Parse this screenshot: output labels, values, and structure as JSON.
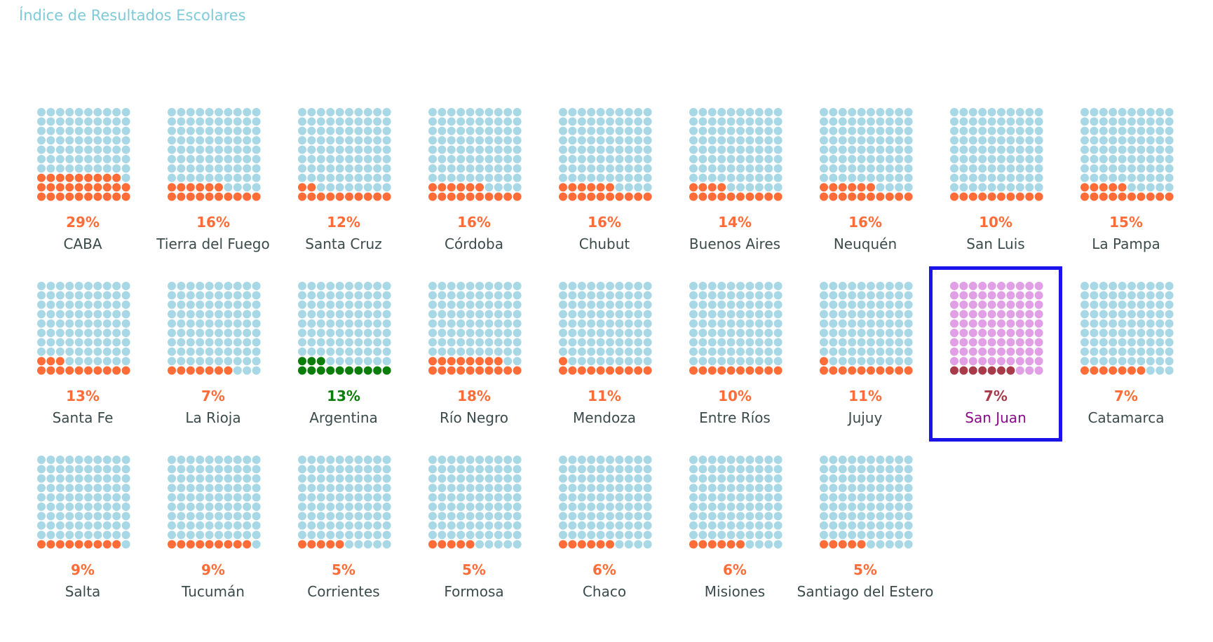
{
  "title": "Índice de Resultados Escolares",
  "colors": {
    "base_dot": "#a8d8e6",
    "highlight_dot": "#ff6c38",
    "pct_text": "#ff6c38",
    "name_text": "#3b4a4a",
    "national_dot": "#0a7d0a",
    "national_text": "#0a7d0a",
    "selected_base_dot": "#e1a0e5",
    "selected_highlight_dot": "#a83a4a",
    "selected_pct_text": "#a83a4a",
    "selected_name_text": "#8a0a8a",
    "selected_border": "#1a14ea",
    "title": "#7fcad8"
  },
  "chart_data": {
    "type": "waffle",
    "title": "Índice de Resultados Escolares",
    "unit": "%",
    "grid": [
      10,
      10
    ],
    "selected": "San Juan",
    "national": "Argentina",
    "items": [
      {
        "name": "CABA",
        "value": 29,
        "label": "29%"
      },
      {
        "name": "Tierra del Fuego",
        "value": 16,
        "label": "16%"
      },
      {
        "name": "Santa Cruz",
        "value": 12,
        "label": "12%"
      },
      {
        "name": "Córdoba",
        "value": 16,
        "label": "16%"
      },
      {
        "name": "Chubut",
        "value": 16,
        "label": "16%"
      },
      {
        "name": "Buenos Aires",
        "value": 14,
        "label": "14%"
      },
      {
        "name": "Neuquén",
        "value": 16,
        "label": "16%"
      },
      {
        "name": "San Luis",
        "value": 10,
        "label": "10%"
      },
      {
        "name": "La Pampa",
        "value": 15,
        "label": "15%"
      },
      {
        "name": "Santa Fe",
        "value": 13,
        "label": "13%"
      },
      {
        "name": "La Rioja",
        "value": 7,
        "label": "7%"
      },
      {
        "name": "Argentina",
        "value": 13,
        "label": "13%"
      },
      {
        "name": "Río Negro",
        "value": 18,
        "label": "18%"
      },
      {
        "name": "Mendoza",
        "value": 11,
        "label": "11%"
      },
      {
        "name": "Entre Ríos",
        "value": 10,
        "label": "10%"
      },
      {
        "name": "Jujuy",
        "value": 11,
        "label": "11%"
      },
      {
        "name": "San Juan",
        "value": 7,
        "label": "7%"
      },
      {
        "name": "Catamarca",
        "value": 7,
        "label": "7%"
      },
      {
        "name": "Salta",
        "value": 9,
        "label": "9%"
      },
      {
        "name": "Tucumán",
        "value": 9,
        "label": "9%"
      },
      {
        "name": "Corrientes",
        "value": 5,
        "label": "5%"
      },
      {
        "name": "Formosa",
        "value": 5,
        "label": "5%"
      },
      {
        "name": "Chaco",
        "value": 6,
        "label": "6%"
      },
      {
        "name": "Misiones",
        "value": 6,
        "label": "6%"
      },
      {
        "name": "Santiago del Estero",
        "value": 5,
        "label": "5%"
      }
    ]
  }
}
